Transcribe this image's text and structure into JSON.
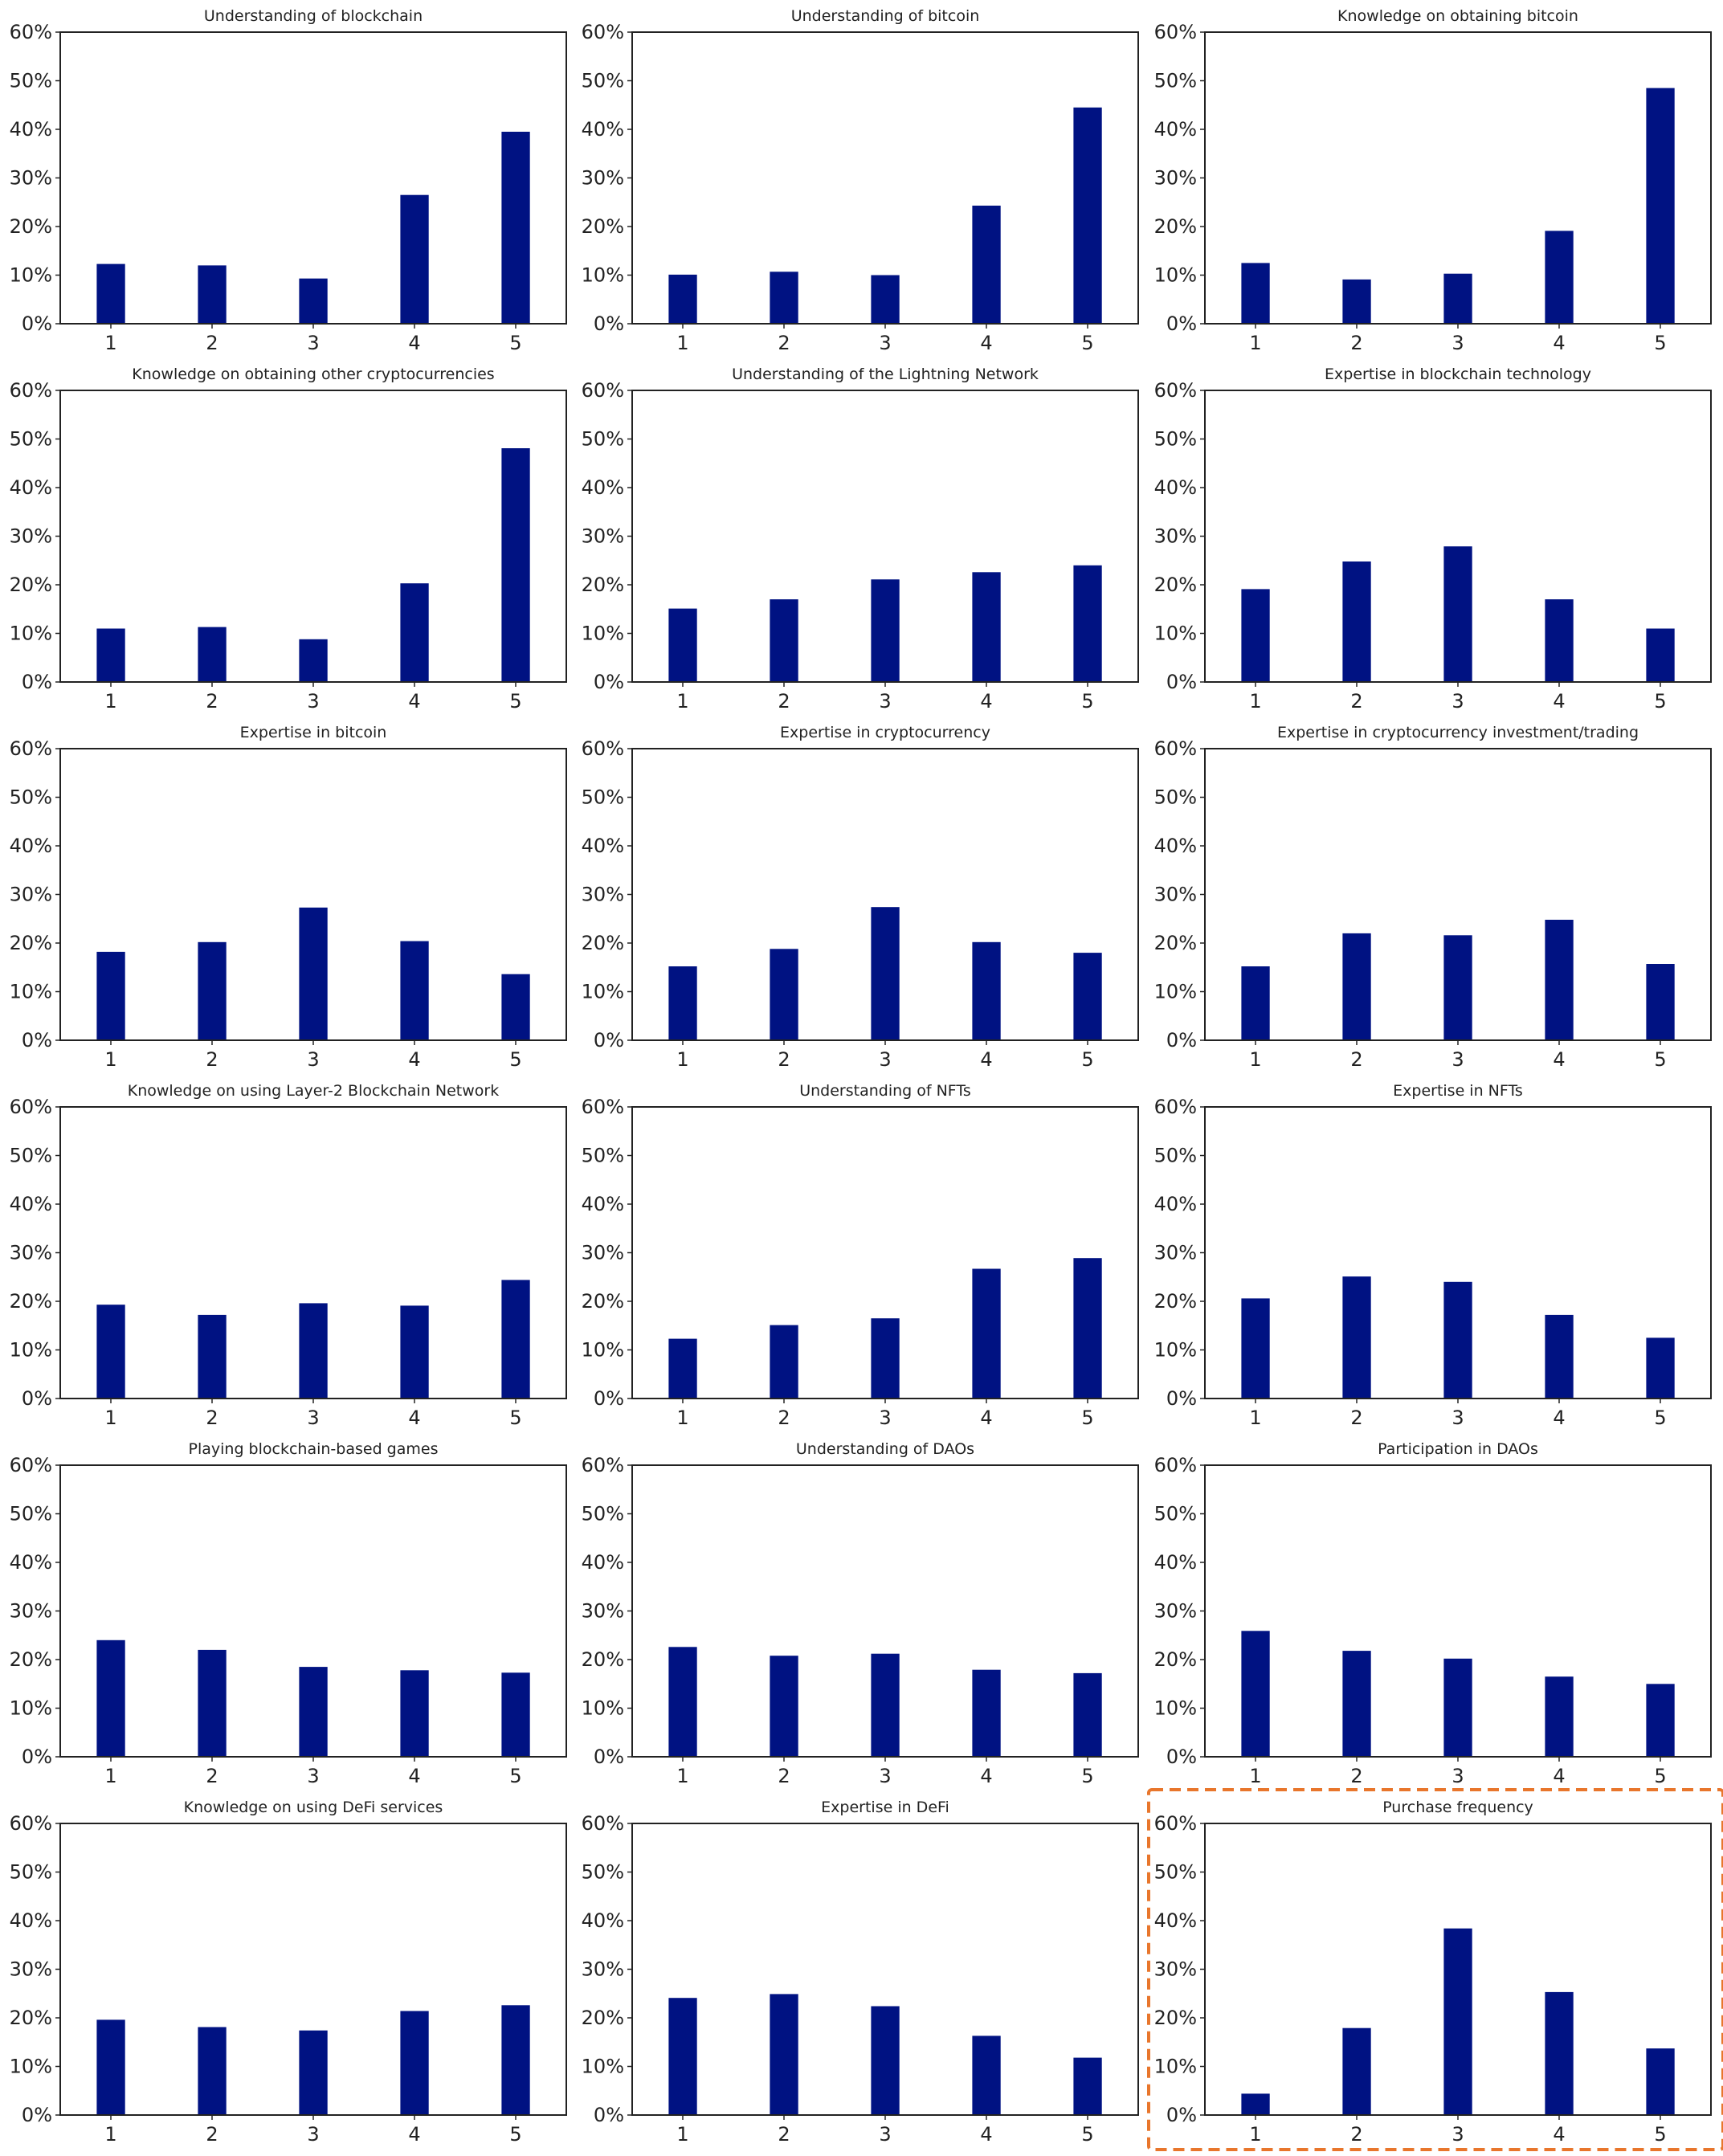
{
  "colors": {
    "bar": "#001282",
    "axis": "#222222",
    "highlight": "#e8762c"
  },
  "highlighted_panel": "Purchase frequency",
  "chart_data": [
    {
      "type": "bar",
      "title": "Understanding of blockchain",
      "categories": [
        "1",
        "2",
        "3",
        "4",
        "5"
      ],
      "values": [
        12.3,
        12.0,
        9.3,
        26.5,
        39.5
      ],
      "ylim": [
        0,
        60
      ],
      "yticks": [
        "0%",
        "10%",
        "20%",
        "30%",
        "40%",
        "50%",
        "60%"
      ],
      "grid": false
    },
    {
      "type": "bar",
      "title": "Understanding of bitcoin",
      "categories": [
        "1",
        "2",
        "3",
        "4",
        "5"
      ],
      "values": [
        10.1,
        10.7,
        10.0,
        24.3,
        44.5
      ],
      "ylim": [
        0,
        60
      ],
      "yticks": [
        "0%",
        "10%",
        "20%",
        "30%",
        "40%",
        "50%",
        "60%"
      ],
      "grid": false
    },
    {
      "type": "bar",
      "title": "Knowledge on obtaining bitcoin",
      "categories": [
        "1",
        "2",
        "3",
        "4",
        "5"
      ],
      "values": [
        12.5,
        9.1,
        10.3,
        19.1,
        48.5
      ],
      "ylim": [
        0,
        60
      ],
      "yticks": [
        "0%",
        "10%",
        "20%",
        "30%",
        "40%",
        "50%",
        "60%"
      ],
      "grid": false
    },
    {
      "type": "bar",
      "title": "Knowledge on obtaining other cryptocurrencies",
      "categories": [
        "1",
        "2",
        "3",
        "4",
        "5"
      ],
      "values": [
        11.0,
        11.3,
        8.8,
        20.3,
        48.1
      ],
      "ylim": [
        0,
        60
      ],
      "yticks": [
        "0%",
        "10%",
        "20%",
        "30%",
        "40%",
        "50%",
        "60%"
      ],
      "grid": false
    },
    {
      "type": "bar",
      "title": "Understanding of the Lightning Network",
      "categories": [
        "1",
        "2",
        "3",
        "4",
        "5"
      ],
      "values": [
        15.1,
        17.0,
        21.1,
        22.6,
        24.0
      ],
      "ylim": [
        0,
        60
      ],
      "yticks": [
        "0%",
        "10%",
        "20%",
        "30%",
        "40%",
        "50%",
        "60%"
      ],
      "grid": false
    },
    {
      "type": "bar",
      "title": "Expertise in blockchain technology",
      "categories": [
        "1",
        "2",
        "3",
        "4",
        "5"
      ],
      "values": [
        19.1,
        24.8,
        27.9,
        17.0,
        11.0
      ],
      "ylim": [
        0,
        60
      ],
      "yticks": [
        "0%",
        "10%",
        "20%",
        "30%",
        "40%",
        "50%",
        "60%"
      ],
      "grid": false
    },
    {
      "type": "bar",
      "title": "Expertise in bitcoin",
      "categories": [
        "1",
        "2",
        "3",
        "4",
        "5"
      ],
      "values": [
        18.2,
        20.2,
        27.3,
        20.4,
        13.6
      ],
      "ylim": [
        0,
        60
      ],
      "yticks": [
        "0%",
        "10%",
        "20%",
        "30%",
        "40%",
        "50%",
        "60%"
      ],
      "grid": false
    },
    {
      "type": "bar",
      "title": "Expertise in cryptocurrency",
      "categories": [
        "1",
        "2",
        "3",
        "4",
        "5"
      ],
      "values": [
        15.2,
        18.8,
        27.4,
        20.2,
        18.0
      ],
      "ylim": [
        0,
        60
      ],
      "yticks": [
        "0%",
        "10%",
        "20%",
        "30%",
        "40%",
        "50%",
        "60%"
      ],
      "grid": false
    },
    {
      "type": "bar",
      "title": "Expertise in cryptocurrency investment/trading",
      "categories": [
        "1",
        "2",
        "3",
        "4",
        "5"
      ],
      "values": [
        15.2,
        22.0,
        21.6,
        24.8,
        15.7
      ],
      "ylim": [
        0,
        60
      ],
      "yticks": [
        "0%",
        "10%",
        "20%",
        "30%",
        "40%",
        "50%",
        "60%"
      ],
      "grid": false
    },
    {
      "type": "bar",
      "title": "Knowledge on using Layer-2 Blockchain Network",
      "categories": [
        "1",
        "2",
        "3",
        "4",
        "5"
      ],
      "values": [
        19.3,
        17.2,
        19.6,
        19.1,
        24.4
      ],
      "ylim": [
        0,
        60
      ],
      "yticks": [
        "0%",
        "10%",
        "20%",
        "30%",
        "40%",
        "50%",
        "60%"
      ],
      "grid": false
    },
    {
      "type": "bar",
      "title": "Understanding of NFTs",
      "categories": [
        "1",
        "2",
        "3",
        "4",
        "5"
      ],
      "values": [
        12.3,
        15.1,
        16.5,
        26.7,
        28.9
      ],
      "ylim": [
        0,
        60
      ],
      "yticks": [
        "0%",
        "10%",
        "20%",
        "30%",
        "40%",
        "50%",
        "60%"
      ],
      "grid": false
    },
    {
      "type": "bar",
      "title": "Expertise in NFTs",
      "categories": [
        "1",
        "2",
        "3",
        "4",
        "5"
      ],
      "values": [
        20.6,
        25.1,
        24.0,
        17.2,
        12.5
      ],
      "ylim": [
        0,
        60
      ],
      "yticks": [
        "0%",
        "10%",
        "20%",
        "30%",
        "40%",
        "50%",
        "60%"
      ],
      "grid": false
    },
    {
      "type": "bar",
      "title": "Playing blockchain-based games",
      "categories": [
        "1",
        "2",
        "3",
        "4",
        "5"
      ],
      "values": [
        24.0,
        22.0,
        18.5,
        17.8,
        17.3
      ],
      "ylim": [
        0,
        60
      ],
      "yticks": [
        "0%",
        "10%",
        "20%",
        "30%",
        "40%",
        "50%",
        "60%"
      ],
      "grid": false
    },
    {
      "type": "bar",
      "title": "Understanding of DAOs",
      "categories": [
        "1",
        "2",
        "3",
        "4",
        "5"
      ],
      "values": [
        22.6,
        20.8,
        21.2,
        17.9,
        17.2
      ],
      "ylim": [
        0,
        60
      ],
      "yticks": [
        "0%",
        "10%",
        "20%",
        "30%",
        "40%",
        "50%",
        "60%"
      ],
      "grid": false
    },
    {
      "type": "bar",
      "title": "Participation in DAOs",
      "categories": [
        "1",
        "2",
        "3",
        "4",
        "5"
      ],
      "values": [
        25.9,
        21.8,
        20.2,
        16.5,
        15.0
      ],
      "ylim": [
        0,
        60
      ],
      "yticks": [
        "0%",
        "10%",
        "20%",
        "30%",
        "40%",
        "50%",
        "60%"
      ],
      "grid": false
    },
    {
      "type": "bar",
      "title": "Knowledge on using DeFi services",
      "categories": [
        "1",
        "2",
        "3",
        "4",
        "5"
      ],
      "values": [
        19.6,
        18.1,
        17.4,
        21.4,
        22.6
      ],
      "ylim": [
        0,
        60
      ],
      "yticks": [
        "0%",
        "10%",
        "20%",
        "30%",
        "40%",
        "50%",
        "60%"
      ],
      "grid": false
    },
    {
      "type": "bar",
      "title": "Expertise in DeFi",
      "categories": [
        "1",
        "2",
        "3",
        "4",
        "5"
      ],
      "values": [
        24.1,
        24.9,
        22.4,
        16.3,
        11.8
      ],
      "ylim": [
        0,
        60
      ],
      "yticks": [
        "0%",
        "10%",
        "20%",
        "30%",
        "40%",
        "50%",
        "60%"
      ],
      "grid": false
    },
    {
      "type": "bar",
      "title": "Purchase frequency",
      "categories": [
        "1",
        "2",
        "3",
        "4",
        "5"
      ],
      "values": [
        4.4,
        17.9,
        38.4,
        25.3,
        13.7
      ],
      "ylim": [
        0,
        60
      ],
      "yticks": [
        "0%",
        "10%",
        "20%",
        "30%",
        "40%",
        "50%",
        "60%"
      ],
      "grid": false
    }
  ]
}
